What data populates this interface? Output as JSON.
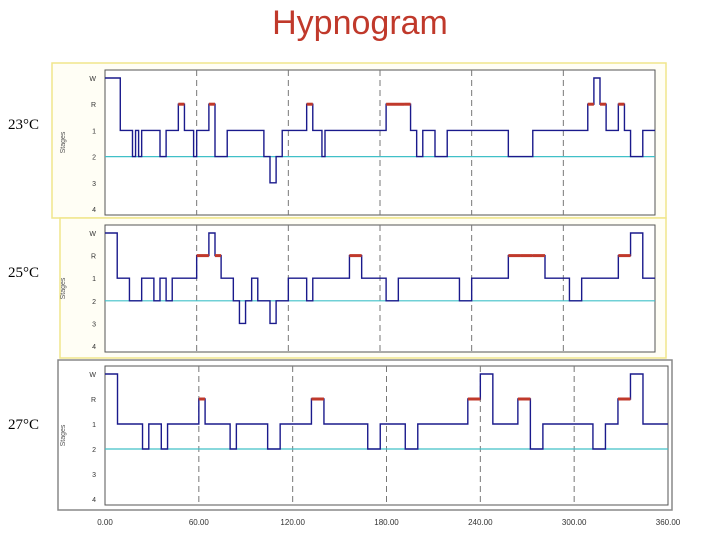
{
  "title": "Hypnogram",
  "chart_data": [
    {
      "type": "line",
      "label": "23°C",
      "ylabel": "Stages",
      "yticks": [
        "W",
        "R",
        "1",
        "2",
        "3",
        "4"
      ],
      "xlim": [
        0,
        900
      ],
      "x": [
        0,
        20,
        25,
        45,
        50,
        55,
        60,
        80,
        90,
        100,
        110,
        120,
        130,
        140,
        145,
        150,
        160,
        170,
        180,
        190,
        200,
        210,
        215,
        220,
        260,
        270,
        280,
        290,
        300,
        320,
        330,
        340,
        350,
        355,
        360,
        400,
        430,
        460,
        490,
        500,
        510,
        520,
        540,
        560,
        600,
        620,
        660,
        700,
        740,
        780,
        790,
        800,
        810,
        820,
        830,
        840,
        850,
        860,
        880,
        900
      ],
      "values": [
        0,
        0,
        2,
        3,
        2,
        3,
        2,
        2,
        3,
        2,
        2,
        1,
        2,
        2,
        3,
        2,
        2,
        1,
        3,
        3,
        2,
        2,
        2,
        2,
        3,
        4,
        3,
        2,
        2,
        2,
        1,
        2,
        2,
        3,
        2,
        2,
        2,
        1,
        1,
        2,
        3,
        2,
        3,
        2,
        2,
        2,
        3,
        2,
        2,
        2,
        1,
        0,
        1,
        2,
        2,
        1,
        2,
        3,
        2,
        2
      ]
    },
    {
      "type": "line",
      "label": "25°C",
      "ylabel": "Stages",
      "yticks": [
        "W",
        "R",
        "1",
        "2",
        "3",
        "4"
      ],
      "xlim": [
        0,
        900
      ],
      "x": [
        0,
        20,
        40,
        60,
        80,
        90,
        100,
        110,
        130,
        150,
        170,
        180,
        190,
        200,
        210,
        220,
        230,
        240,
        250,
        260,
        270,
        280,
        300,
        320,
        330,
        340,
        360,
        380,
        400,
        420,
        440,
        460,
        480,
        500,
        520,
        540,
        560,
        580,
        600,
        620,
        640,
        660,
        680,
        700,
        720,
        740,
        760,
        780,
        800,
        820,
        840,
        860,
        880,
        900
      ],
      "values": [
        0,
        2,
        3,
        2,
        3,
        2,
        3,
        2,
        2,
        1,
        0,
        1,
        2,
        2,
        3,
        4,
        3,
        2,
        3,
        3,
        4,
        3,
        2,
        2,
        3,
        2,
        2,
        2,
        1,
        2,
        2,
        3,
        2,
        2,
        2,
        2,
        2,
        3,
        2,
        2,
        2,
        1,
        1,
        1,
        2,
        2,
        3,
        2,
        2,
        2,
        1,
        0,
        2,
        2
      ]
    },
    {
      "type": "line",
      "label": "27°C",
      "ylabel": "Stages",
      "yticks": [
        "W",
        "R",
        "1",
        "2",
        "3",
        "4"
      ],
      "xlim": [
        0,
        900
      ],
      "x": [
        0,
        10,
        20,
        40,
        60,
        70,
        80,
        90,
        100,
        140,
        150,
        160,
        190,
        200,
        210,
        240,
        260,
        280,
        300,
        330,
        350,
        360,
        400,
        420,
        440,
        460,
        480,
        500,
        520,
        540,
        560,
        580,
        600,
        620,
        640,
        660,
        680,
        700,
        720,
        740,
        760,
        780,
        800,
        820,
        840,
        860,
        880,
        900
      ],
      "values": [
        0,
        0,
        2,
        2,
        3,
        2,
        2,
        3,
        2,
        2,
        1,
        2,
        2,
        3,
        2,
        2,
        3,
        2,
        2,
        1,
        2,
        2,
        2,
        3,
        2,
        2,
        3,
        2,
        2,
        2,
        2,
        1,
        0,
        2,
        2,
        1,
        3,
        2,
        2,
        2,
        2,
        3,
        2,
        1,
        0,
        2,
        2,
        2
      ]
    }
  ],
  "xaxis_ticks": [
    "0.00",
    "60.00",
    "120.00",
    "180.00",
    "240.00",
    "300.00",
    "360.00"
  ]
}
